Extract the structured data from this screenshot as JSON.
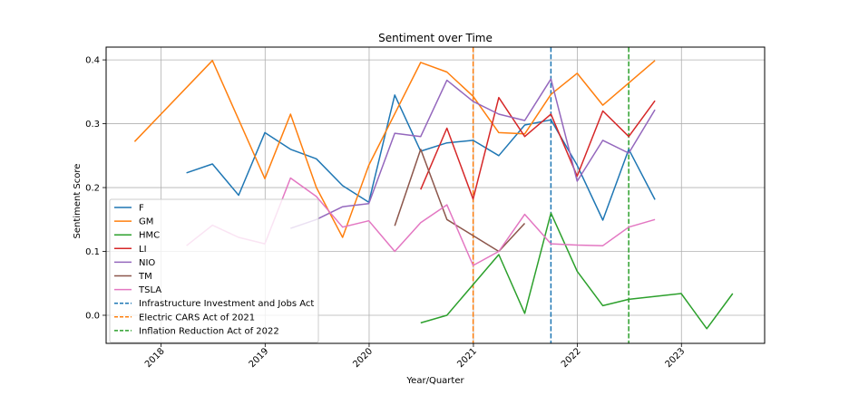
{
  "chart_data": {
    "type": "line",
    "title": "Sentiment over Time",
    "xlabel": "Year/Quarter",
    "ylabel": "Sentiment Score",
    "grid": true,
    "legend_position": "lower left",
    "xlim": [
      "2017-06-22",
      "2023-10-20"
    ],
    "ylim": [
      -0.044,
      0.42
    ],
    "x_ticks": [
      "2018",
      "2019",
      "2020",
      "2021",
      "2022",
      "2023"
    ],
    "x_tick_dates": [
      "2018-01-01",
      "2019-01-01",
      "2020-01-01",
      "2021-01-01",
      "2022-01-01",
      "2023-01-01"
    ],
    "y_ticks": [
      "0.0",
      "0.1",
      "0.2",
      "0.3",
      "0.4"
    ],
    "y_tick_values": [
      0.0,
      0.1,
      0.2,
      0.3,
      0.4
    ],
    "series": [
      {
        "name": "F",
        "color": "#1f77b4",
        "points": [
          [
            "2018-03-31",
            0.223
          ],
          [
            "2018-06-30",
            0.237
          ],
          [
            "2018-09-30",
            0.188
          ],
          [
            "2018-12-31",
            0.286
          ],
          [
            "2019-03-31",
            0.26
          ],
          [
            "2019-06-30",
            0.245
          ],
          [
            "2019-09-30",
            0.203
          ],
          [
            "2019-12-31",
            0.177
          ],
          [
            "2020-03-31",
            0.345
          ],
          [
            "2020-06-30",
            0.257
          ],
          [
            "2020-09-30",
            0.27
          ],
          [
            "2020-12-31",
            0.274
          ],
          [
            "2021-03-31",
            0.25
          ],
          [
            "2021-06-30",
            0.298
          ],
          [
            "2021-09-30",
            0.306
          ],
          [
            "2021-12-31",
            0.235
          ],
          [
            "2022-03-31",
            0.149
          ],
          [
            "2022-06-30",
            0.26
          ],
          [
            "2022-09-30",
            0.181
          ]
        ]
      },
      {
        "name": "GM",
        "color": "#ff7f0e",
        "points": [
          [
            "2017-09-30",
            0.272
          ],
          [
            "2018-06-30",
            0.399
          ],
          [
            "2018-12-31",
            0.214
          ],
          [
            "2019-03-31",
            0.315
          ],
          [
            "2019-06-30",
            0.2
          ],
          [
            "2019-09-30",
            0.122
          ],
          [
            "2019-12-31",
            0.235
          ],
          [
            "2020-06-30",
            0.396
          ],
          [
            "2020-09-30",
            0.381
          ],
          [
            "2020-12-31",
            0.343
          ],
          [
            "2021-03-31",
            0.286
          ],
          [
            "2021-06-30",
            0.284
          ],
          [
            "2021-09-30",
            0.346
          ],
          [
            "2021-12-31",
            0.379
          ],
          [
            "2022-03-31",
            0.329
          ],
          [
            "2022-09-30",
            0.399
          ]
        ]
      },
      {
        "name": "HMC",
        "color": "#2ca02c",
        "points": [
          [
            "2020-06-30",
            -0.012
          ],
          [
            "2020-09-30",
            0.0
          ],
          [
            "2021-03-31",
            0.095
          ],
          [
            "2021-06-30",
            0.003
          ],
          [
            "2021-09-30",
            0.16
          ],
          [
            "2021-12-31",
            0.069
          ],
          [
            "2022-03-31",
            0.015
          ],
          [
            "2022-06-30",
            0.025
          ],
          [
            "2022-12-31",
            0.034
          ],
          [
            "2023-03-31",
            -0.021
          ],
          [
            "2023-06-30",
            0.034
          ]
        ]
      },
      {
        "name": "LI",
        "color": "#d62728",
        "points": [
          [
            "2020-06-30",
            0.197
          ],
          [
            "2020-09-30",
            0.293
          ],
          [
            "2020-12-31",
            0.182
          ],
          [
            "2021-03-31",
            0.341
          ],
          [
            "2021-06-30",
            0.28
          ],
          [
            "2021-09-30",
            0.315
          ],
          [
            "2021-12-31",
            0.218
          ],
          [
            "2022-03-31",
            0.32
          ],
          [
            "2022-06-30",
            0.28
          ],
          [
            "2022-09-30",
            0.336
          ]
        ]
      },
      {
        "name": "NIO",
        "color": "#9467bd",
        "points": [
          [
            "2019-03-31",
            0.136
          ],
          [
            "2019-06-30",
            0.15
          ],
          [
            "2019-09-30",
            0.17
          ],
          [
            "2019-12-31",
            0.175
          ],
          [
            "2020-03-31",
            0.285
          ],
          [
            "2020-06-30",
            0.28
          ],
          [
            "2020-09-30",
            0.368
          ],
          [
            "2020-12-31",
            0.335
          ],
          [
            "2021-03-31",
            0.315
          ],
          [
            "2021-06-30",
            0.305
          ],
          [
            "2021-09-30",
            0.37
          ],
          [
            "2021-12-31",
            0.21
          ],
          [
            "2022-03-31",
            0.274
          ],
          [
            "2022-06-30",
            0.254
          ],
          [
            "2022-09-30",
            0.322
          ]
        ]
      },
      {
        "name": "TM",
        "color": "#8c564b",
        "points": [
          [
            "2020-03-31",
            0.14
          ],
          [
            "2020-06-30",
            0.26
          ],
          [
            "2020-09-30",
            0.15
          ],
          [
            "2021-03-31",
            0.1
          ],
          [
            "2021-06-30",
            0.144
          ]
        ]
      },
      {
        "name": "TSLA",
        "color": "#e377c2",
        "points": [
          [
            "2018-03-31",
            0.109
          ],
          [
            "2018-06-30",
            0.141
          ],
          [
            "2018-09-30",
            0.122
          ],
          [
            "2018-12-31",
            0.112
          ],
          [
            "2019-03-31",
            0.215
          ],
          [
            "2019-06-30",
            0.186
          ],
          [
            "2019-09-30",
            0.138
          ],
          [
            "2019-12-31",
            0.148
          ],
          [
            "2020-03-31",
            0.1
          ],
          [
            "2020-06-30",
            0.145
          ],
          [
            "2020-09-30",
            0.173
          ],
          [
            "2020-12-31",
            0.078
          ],
          [
            "2021-03-31",
            0.1
          ],
          [
            "2021-06-30",
            0.158
          ],
          [
            "2021-09-30",
            0.112
          ],
          [
            "2021-12-31",
            0.11
          ],
          [
            "2022-03-31",
            0.109
          ],
          [
            "2022-06-30",
            0.138
          ],
          [
            "2022-09-30",
            0.15
          ]
        ]
      }
    ],
    "vlines": [
      {
        "name": "Infrastructure Investment and Jobs Act",
        "date": "2021-09-30",
        "color": "#1f77b4",
        "style": "dashed"
      },
      {
        "name": "Electric CARS Act of 2021",
        "date": "2020-12-31",
        "color": "#ff7f0e",
        "style": "dashed"
      },
      {
        "name": "Inflation Reduction Act of 2022",
        "date": "2022-06-30",
        "color": "#2ca02c",
        "style": "dashed"
      }
    ]
  }
}
